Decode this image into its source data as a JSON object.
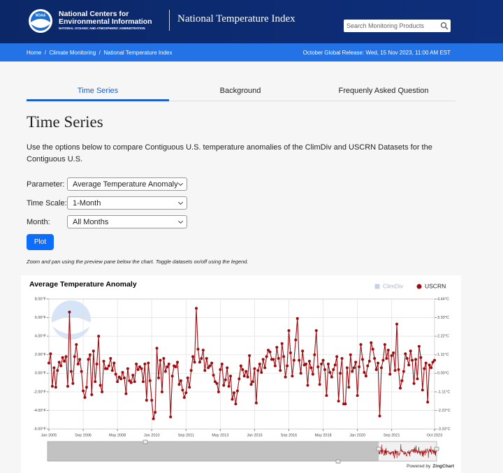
{
  "header": {
    "logo_text": "NOAA",
    "org_line1": "National Centers for",
    "org_line2": "Environmental Information",
    "org_line3": "NATIONAL OCEANIC AND ATMOSPHERIC ADMINISTRATION",
    "app_title": "National Temperature Index",
    "search_placeholder": "Search Monitoring Products"
  },
  "breadcrumb": [
    "Home",
    "/",
    "Climate Monitoring",
    "/",
    "National Temperature Index"
  ],
  "release": "October Global Release: Wed, 15 Nov 2023, 11:00 AM EST",
  "tabs": [
    "Time Series",
    "Background",
    "Frequenly Asked Question"
  ],
  "heading": "Time Series",
  "intro": "Use the options below to compare Contiguous U.S. temperature anomalies of the ClimDiv and USCRN Datasets for the Contiguous U.S.",
  "form": [
    {
      "label": "Parameter:",
      "value": "Average Temperature Anomaly"
    },
    {
      "label": "Time Scale:",
      "value": "1-Month"
    },
    {
      "label": "Month:",
      "value": "All Months"
    }
  ],
  "button": "Plot",
  "note": "Zoom and pan using the preview pane below the chart. Toggle datasets on/off using the legend.",
  "chart_data": {
    "type": "line",
    "title": "Average Temperature Anomaly",
    "categories": [
      "Jan 2005",
      null,
      null,
      null,
      null,
      null,
      null,
      null,
      null,
      null,
      null,
      null,
      null,
      null,
      null,
      null,
      null,
      null,
      null,
      null,
      "Sep 2006",
      null,
      null,
      null,
      null,
      null,
      null,
      null,
      null,
      null,
      null,
      null,
      null,
      null,
      null,
      null,
      null,
      null,
      null,
      null,
      "May 2008",
      null,
      null,
      null,
      null,
      null,
      null,
      null,
      null,
      null,
      null,
      null,
      null,
      null,
      null,
      null,
      null,
      null,
      null,
      null,
      "Jan 2010",
      null,
      null,
      null,
      null,
      null,
      null,
      null,
      null,
      null,
      null,
      null,
      null,
      null,
      null,
      null,
      null,
      null,
      null,
      null,
      "Sep 2011",
      null,
      null,
      null,
      null,
      null,
      null,
      null,
      null,
      null,
      null,
      null,
      null,
      null,
      null,
      null,
      null,
      null,
      null,
      null,
      "May 2013",
      null,
      null,
      null,
      null,
      null,
      null,
      null,
      null,
      null,
      null,
      null,
      null,
      null,
      null,
      null,
      null,
      null,
      null,
      null,
      "Jan 2015",
      null,
      null,
      null,
      null,
      null,
      null,
      null,
      null,
      null,
      null,
      null,
      null,
      null,
      null,
      null,
      null,
      null,
      null,
      null,
      "Sep 2016",
      null,
      null,
      null,
      null,
      null,
      null,
      null,
      null,
      null,
      null,
      null,
      null,
      null,
      null,
      null,
      null,
      null,
      null,
      null,
      "May 2018",
      null,
      null,
      null,
      null,
      null,
      null,
      null,
      null,
      null,
      null,
      null,
      null,
      null,
      null,
      null,
      null,
      null,
      null,
      null,
      "Jan 2020",
      null,
      null,
      null,
      null,
      null,
      null,
      null,
      null,
      null,
      null,
      null,
      null,
      null,
      null,
      null,
      null,
      null,
      null,
      null,
      "Sep 2021",
      null,
      null,
      null,
      null,
      null,
      null,
      null,
      null,
      null,
      null,
      null,
      null,
      null,
      null,
      null,
      null,
      null,
      null,
      null,
      null,
      null,
      null,
      null,
      null,
      "Oct 2023"
    ],
    "series": [
      {
        "name": "ClimDiv",
        "color": "#b9c6de",
        "visible": false
      },
      {
        "name": "USCRN",
        "color": "#9e0b0f",
        "visible": true,
        "values": [
          1.1,
          2.1,
          -1.4,
          0.6,
          -1.5,
          0.3,
          1.2,
          0.8,
          1.7,
          1.3,
          1.8,
          -1.4,
          6.6,
          0.2,
          -1.1,
          1.8,
          3.1,
          1.0,
          1.5,
          0.2,
          -1.9,
          -2.6,
          -1.5,
          1.5,
          2.0,
          -2.3,
          2.4,
          -0.9,
          1.0,
          4.0,
          -1.3,
          -2.0,
          1.3,
          0.5,
          0.5,
          0.8,
          1.6,
          0.3,
          1.1,
          -0.1,
          -0.9,
          -0.4,
          -0.6,
          0.1,
          -0.5,
          -2.2,
          0.5,
          -0.8,
          -1.0,
          -0.2,
          -0.9,
          1.0,
          0.4,
          0.7,
          0.5,
          -0.9,
          1.0,
          -2.9,
          1.1,
          -0.8,
          -2.9,
          -4.9,
          -4.2,
          2.7,
          -0.5,
          1.4,
          -2.0,
          1.6,
          0.2,
          0.7,
          1.0,
          -4.7,
          -0.3,
          0.8,
          0.7,
          1.2,
          -1.2,
          -0.8,
          -1.8,
          -2.6,
          -2.1,
          -0.5,
          -1.5,
          0.3,
          1.8,
          1.2,
          7.0,
          2.6,
          1.2,
          1.6,
          2.5,
          0.3,
          1.6,
          0.6,
          0.8,
          1.1,
          -0.2,
          -0.9,
          -1.1,
          -2.0,
          0.4,
          1.0,
          -1.3,
          -0.7,
          0.6,
          -1.4,
          -0.3,
          -2.8,
          -2.1,
          -3.3,
          -1.9,
          -0.6,
          0.8,
          0.4,
          -0.3,
          0.2,
          -0.4,
          1.9,
          -1.2,
          -0.9,
          0.5,
          -3.2,
          0.3,
          1.0,
          0.1,
          1.5,
          0.6,
          1.8,
          2.5,
          2.3,
          1.5,
          1.5,
          0.8,
          2.8,
          1.6,
          0.3,
          3.2,
          1.8,
          -0.4,
          0.8,
          4.6,
          2.2,
          -0.3,
          1.4,
          3.6,
          5.9,
          1.4,
          0.0,
          2.4,
          0.9,
          1.0,
          -1.3,
          1.3,
          0.6,
          -0.1,
          2.0,
          4.6,
          0.7,
          -1.2,
          1.0,
          1.4,
          0.4,
          -2.4,
          1.0,
          0.1,
          -0.4,
          0.4,
          0.9,
          1.8,
          -3.0,
          0.0,
          1.6,
          -3.3,
          -3.3,
          0.6,
          -1.5,
          2.0,
          0.2,
          0.6,
          1.2,
          -2.4,
          0.7,
          3.1,
          1.5,
          0.1,
          -0.3,
          0.8,
          1.3,
          3.3,
          2.6,
          1.6,
          0.4,
          1.1,
          -4.6,
          0.6,
          1.4,
          3.1,
          1.6,
          2.5,
          -0.1,
          1.9,
          2.2,
          0.3,
          5.3,
          0.4,
          -1.6,
          -0.8,
          0.2,
          2.1,
          1.6,
          0.9,
          2.4,
          1.4,
          -1.1,
          1.5,
          -0.6,
          2.9,
          1.7,
          -1.8,
          0.5,
          1.1,
          -3.1,
          0.9,
          0.6,
          1.2,
          1.4
        ]
      }
    ],
    "ylim": [
      -6,
      8
    ],
    "yticks": [
      {
        "value": 8,
        "label": "8.00°F"
      },
      {
        "value": 6,
        "label": "6.00°F"
      },
      {
        "value": 4,
        "label": "4.00°F"
      },
      {
        "value": 2,
        "label": "2.00°F"
      },
      {
        "value": 0,
        "label": "0.00°F"
      },
      {
        "value": -2,
        "label": "-2.00°F"
      },
      {
        "value": -4,
        "label": "-4.00°F"
      },
      {
        "value": -6,
        "label": "-6.00°F"
      }
    ],
    "y2lim": [
      -3.33,
      4.44
    ],
    "y2ticks": [
      {
        "value": 4.44,
        "label": "4.44°C"
      },
      {
        "value": 3.33,
        "label": "3.33°C"
      },
      {
        "value": 2.22,
        "label": "2.22°C"
      },
      {
        "value": 1.11,
        "label": "1.11°C"
      },
      {
        "value": 0,
        "label": "0.00°C"
      },
      {
        "value": -1.11,
        "label": "-1.11°C"
      },
      {
        "value": -2.22,
        "label": "-2.22°C"
      },
      {
        "value": -3.33,
        "label": "-3.33°C"
      }
    ],
    "grid": true,
    "legend": "top-right"
  },
  "credit": {
    "prefix": "Powered by",
    "brand": "ZingChart"
  }
}
